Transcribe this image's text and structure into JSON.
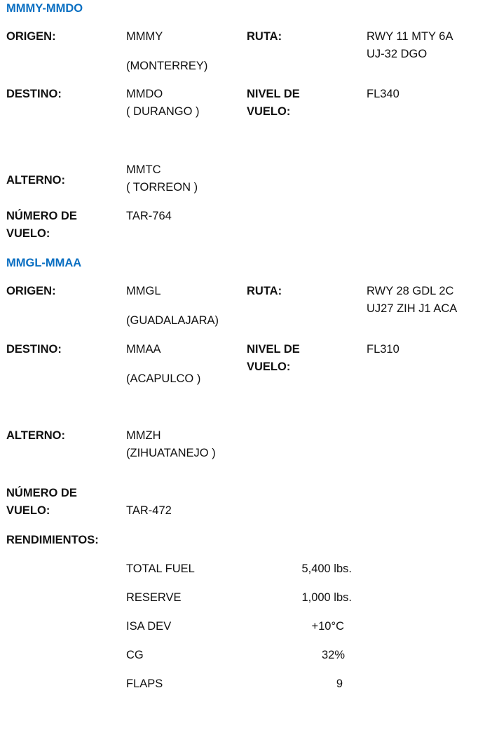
{
  "sections": [
    {
      "title": "MMMY-MMDO",
      "origen_label": "ORIGEN:",
      "origen_code": "MMMY",
      "origen_city": "(MONTERREY)",
      "ruta_label": "RUTA:",
      "ruta_line1": "RWY 11 MTY 6A",
      "ruta_line2": "UJ-32 DGO",
      "destino_label": "DESTINO:",
      "destino_code": "MMDO",
      "destino_city": "( DURANGO )",
      "nivel_label1": "NIVEL DE",
      "nivel_label2": "VUELO:",
      "nivel_value": "FL340",
      "alterno_label": "ALTERNO:",
      "alterno_code": "MMTC",
      "alterno_city": "( TORREON )",
      "numero_label1": "NÚMERO DE",
      "numero_label2": "VUELO:",
      "numero_value": "TAR-764"
    },
    {
      "title": "MMGL-MMAA",
      "origen_label": "ORIGEN:",
      "origen_code": "MMGL",
      "origen_city": "(GUADALAJARA)",
      "ruta_label": "RUTA:",
      "ruta_line1": "RWY 28 GDL 2C",
      "ruta_line2": "UJ27 ZIH J1 ACA",
      "destino_label": "DESTINO:",
      "destino_code": "MMAA",
      "destino_city": "(ACAPULCO )",
      "nivel_label1": "NIVEL DE",
      "nivel_label2": "VUELO:",
      "nivel_value": "FL310",
      "alterno_label": "ALTERNO:",
      "alterno_code": "MMZH",
      "alterno_city": "(ZIHUATANEJO )",
      "numero_label1": "NÚMERO DE",
      "numero_label2": "VUELO:",
      "numero_value": "TAR-472"
    }
  ],
  "rendimientos": {
    "label": "RENDIMIENTOS:",
    "rows": [
      {
        "label": "TOTAL FUEL",
        "value": "5,400 lbs."
      },
      {
        "label": "RESERVE",
        "value": "1,000 lbs."
      },
      {
        "label": "ISA DEV",
        "value": "+10°C"
      },
      {
        "label": "CG",
        "value": "32%"
      },
      {
        "label": "FLAPS",
        "value": "9"
      }
    ]
  },
  "colors": {
    "heading": "#0a6fc2",
    "text": "#111111"
  }
}
